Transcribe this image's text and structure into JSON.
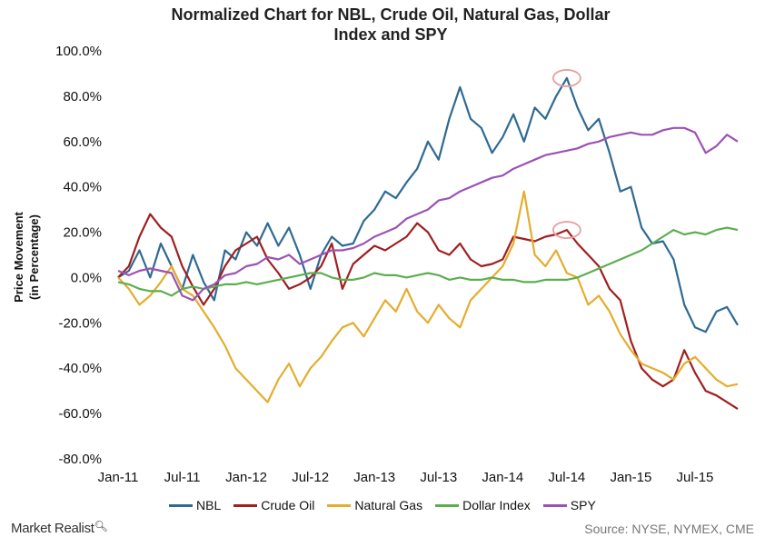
{
  "chart_data": {
    "type": "line",
    "title_line1": "Normalized Chart for NBL, Crude Oil, Natural Gas, Dollar",
    "title_line2": "Index and SPY",
    "ylabel_line1": "Price Movement",
    "ylabel_line2": "(in Percentage)",
    "xlabel": "",
    "ylim": [
      -80,
      100
    ],
    "y_ticks": [
      "100.0%",
      "80.0%",
      "60.0%",
      "40.0%",
      "20.0%",
      "0.0%",
      "-20.0%",
      "-40.0%",
      "-60.0%",
      "-80.0%"
    ],
    "x_ticks": [
      "Jan-11",
      "Jul-11",
      "Jan-12",
      "Jul-12",
      "Jan-13",
      "Jul-13",
      "Jan-14",
      "Jul-14",
      "Jan-15",
      "Jul-15"
    ],
    "x_unit": "months since Jan-11",
    "xlim": [
      0,
      58
    ],
    "grid": false,
    "legend_position": "bottom",
    "highlight_circles": [
      {
        "series": "NBL",
        "x": 42,
        "y": 88
      },
      {
        "series": "Crude Oil",
        "x": 42,
        "y": 21
      }
    ],
    "series": [
      {
        "name": "NBL",
        "color": "#2E6A94",
        "points": [
          [
            0,
            0
          ],
          [
            1,
            3
          ],
          [
            2,
            12
          ],
          [
            3,
            0
          ],
          [
            4,
            15
          ],
          [
            5,
            5
          ],
          [
            6,
            -5
          ],
          [
            7,
            10
          ],
          [
            8,
            -2
          ],
          [
            9,
            -10
          ],
          [
            10,
            12
          ],
          [
            11,
            8
          ],
          [
            12,
            20
          ],
          [
            13,
            14
          ],
          [
            14,
            24
          ],
          [
            15,
            14
          ],
          [
            16,
            22
          ],
          [
            17,
            10
          ],
          [
            18,
            -5
          ],
          [
            19,
            10
          ],
          [
            20,
            18
          ],
          [
            21,
            14
          ],
          [
            22,
            15
          ],
          [
            23,
            25
          ],
          [
            24,
            30
          ],
          [
            25,
            38
          ],
          [
            26,
            35
          ],
          [
            27,
            42
          ],
          [
            28,
            48
          ],
          [
            29,
            60
          ],
          [
            30,
            52
          ],
          [
            31,
            70
          ],
          [
            32,
            84
          ],
          [
            33,
            70
          ],
          [
            34,
            66
          ],
          [
            35,
            55
          ],
          [
            36,
            62
          ],
          [
            37,
            72
          ],
          [
            38,
            60
          ],
          [
            39,
            75
          ],
          [
            40,
            70
          ],
          [
            41,
            80
          ],
          [
            42,
            88
          ],
          [
            43,
            75
          ],
          [
            44,
            65
          ],
          [
            45,
            70
          ],
          [
            46,
            55
          ],
          [
            47,
            38
          ],
          [
            48,
            40
          ],
          [
            49,
            22
          ],
          [
            50,
            15
          ],
          [
            51,
            16
          ],
          [
            52,
            8
          ],
          [
            53,
            -12
          ],
          [
            54,
            -22
          ],
          [
            55,
            -24
          ],
          [
            56,
            -15
          ],
          [
            57,
            -13
          ],
          [
            58,
            -21
          ]
        ]
      },
      {
        "name": "Crude Oil",
        "color": "#A01F1F",
        "points": [
          [
            0,
            0
          ],
          [
            1,
            5
          ],
          [
            2,
            18
          ],
          [
            3,
            28
          ],
          [
            4,
            22
          ],
          [
            5,
            18
          ],
          [
            6,
            5
          ],
          [
            7,
            -4
          ],
          [
            8,
            -12
          ],
          [
            9,
            -5
          ],
          [
            10,
            5
          ],
          [
            11,
            12
          ],
          [
            12,
            15
          ],
          [
            13,
            18
          ],
          [
            14,
            8
          ],
          [
            15,
            2
          ],
          [
            16,
            -5
          ],
          [
            17,
            -3
          ],
          [
            18,
            0
          ],
          [
            19,
            5
          ],
          [
            20,
            15
          ],
          [
            21,
            -5
          ],
          [
            22,
            6
          ],
          [
            23,
            10
          ],
          [
            24,
            14
          ],
          [
            25,
            12
          ],
          [
            26,
            15
          ],
          [
            27,
            18
          ],
          [
            28,
            24
          ],
          [
            29,
            20
          ],
          [
            30,
            12
          ],
          [
            31,
            10
          ],
          [
            32,
            15
          ],
          [
            33,
            8
          ],
          [
            34,
            5
          ],
          [
            35,
            6
          ],
          [
            36,
            8
          ],
          [
            37,
            18
          ],
          [
            38,
            17
          ],
          [
            39,
            16
          ],
          [
            40,
            18
          ],
          [
            41,
            19
          ],
          [
            42,
            21
          ],
          [
            43,
            15
          ],
          [
            44,
            10
          ],
          [
            45,
            5
          ],
          [
            46,
            -5
          ],
          [
            47,
            -10
          ],
          [
            48,
            -28
          ],
          [
            49,
            -40
          ],
          [
            50,
            -45
          ],
          [
            51,
            -48
          ],
          [
            52,
            -45
          ],
          [
            53,
            -32
          ],
          [
            54,
            -42
          ],
          [
            55,
            -50
          ],
          [
            56,
            -52
          ],
          [
            57,
            -55
          ],
          [
            58,
            -58
          ]
        ]
      },
      {
        "name": "Natural Gas",
        "color": "#E4AD2E",
        "points": [
          [
            0,
            0
          ],
          [
            1,
            -5
          ],
          [
            2,
            -12
          ],
          [
            3,
            -8
          ],
          [
            4,
            -2
          ],
          [
            5,
            5
          ],
          [
            6,
            -5
          ],
          [
            7,
            -8
          ],
          [
            8,
            -15
          ],
          [
            9,
            -22
          ],
          [
            10,
            -30
          ],
          [
            11,
            -40
          ],
          [
            12,
            -45
          ],
          [
            13,
            -50
          ],
          [
            14,
            -55
          ],
          [
            15,
            -45
          ],
          [
            16,
            -38
          ],
          [
            17,
            -48
          ],
          [
            18,
            -40
          ],
          [
            19,
            -35
          ],
          [
            20,
            -28
          ],
          [
            21,
            -22
          ],
          [
            22,
            -20
          ],
          [
            23,
            -26
          ],
          [
            24,
            -18
          ],
          [
            25,
            -10
          ],
          [
            26,
            -15
          ],
          [
            27,
            -5
          ],
          [
            28,
            -15
          ],
          [
            29,
            -20
          ],
          [
            30,
            -12
          ],
          [
            31,
            -18
          ],
          [
            32,
            -22
          ],
          [
            33,
            -10
          ],
          [
            34,
            -5
          ],
          [
            35,
            0
          ],
          [
            36,
            5
          ],
          [
            37,
            15
          ],
          [
            38,
            38
          ],
          [
            39,
            10
          ],
          [
            40,
            5
          ],
          [
            41,
            12
          ],
          [
            42,
            2
          ],
          [
            43,
            0
          ],
          [
            44,
            -12
          ],
          [
            45,
            -8
          ],
          [
            46,
            -15
          ],
          [
            47,
            -25
          ],
          [
            48,
            -32
          ],
          [
            49,
            -38
          ],
          [
            50,
            -40
          ],
          [
            51,
            -42
          ],
          [
            52,
            -45
          ],
          [
            53,
            -38
          ],
          [
            54,
            -35
          ],
          [
            55,
            -40
          ],
          [
            56,
            -45
          ],
          [
            57,
            -48
          ],
          [
            58,
            -47
          ]
        ]
      },
      {
        "name": "Dollar Index",
        "color": "#5BAE4E",
        "points": [
          [
            0,
            -2
          ],
          [
            1,
            -3
          ],
          [
            2,
            -5
          ],
          [
            3,
            -6
          ],
          [
            4,
            -6
          ],
          [
            5,
            -8
          ],
          [
            6,
            -5
          ],
          [
            7,
            -4
          ],
          [
            8,
            -5
          ],
          [
            9,
            -4
          ],
          [
            10,
            -3
          ],
          [
            11,
            -3
          ],
          [
            12,
            -2
          ],
          [
            13,
            -3
          ],
          [
            14,
            -2
          ],
          [
            15,
            -1
          ],
          [
            16,
            0
          ],
          [
            17,
            1
          ],
          [
            18,
            2
          ],
          [
            19,
            2
          ],
          [
            20,
            0
          ],
          [
            21,
            -1
          ],
          [
            22,
            -1
          ],
          [
            23,
            0
          ],
          [
            24,
            2
          ],
          [
            25,
            1
          ],
          [
            26,
            1
          ],
          [
            27,
            0
          ],
          [
            28,
            1
          ],
          [
            29,
            2
          ],
          [
            30,
            1
          ],
          [
            31,
            -1
          ],
          [
            32,
            0
          ],
          [
            33,
            -1
          ],
          [
            34,
            -1
          ],
          [
            35,
            0
          ],
          [
            36,
            -1
          ],
          [
            37,
            -1
          ],
          [
            38,
            -2
          ],
          [
            39,
            -2
          ],
          [
            40,
            -1
          ],
          [
            41,
            -1
          ],
          [
            42,
            -1
          ],
          [
            43,
            0
          ],
          [
            44,
            2
          ],
          [
            45,
            4
          ],
          [
            46,
            6
          ],
          [
            47,
            8
          ],
          [
            48,
            10
          ],
          [
            49,
            12
          ],
          [
            50,
            15
          ],
          [
            51,
            18
          ],
          [
            52,
            21
          ],
          [
            53,
            19
          ],
          [
            54,
            20
          ],
          [
            55,
            19
          ],
          [
            56,
            21
          ],
          [
            57,
            22
          ],
          [
            58,
            21
          ]
        ]
      },
      {
        "name": "SPY",
        "color": "#9C52B5",
        "points": [
          [
            0,
            3
          ],
          [
            1,
            1
          ],
          [
            2,
            3
          ],
          [
            3,
            4
          ],
          [
            4,
            3
          ],
          [
            5,
            2
          ],
          [
            6,
            -8
          ],
          [
            7,
            -10
          ],
          [
            8,
            -5
          ],
          [
            9,
            -3
          ],
          [
            10,
            1
          ],
          [
            11,
            2
          ],
          [
            12,
            5
          ],
          [
            13,
            6
          ],
          [
            14,
            9
          ],
          [
            15,
            8
          ],
          [
            16,
            10
          ],
          [
            17,
            6
          ],
          [
            18,
            8
          ],
          [
            19,
            10
          ],
          [
            20,
            12
          ],
          [
            21,
            12
          ],
          [
            22,
            13
          ],
          [
            23,
            15
          ],
          [
            24,
            18
          ],
          [
            25,
            20
          ],
          [
            26,
            22
          ],
          [
            27,
            26
          ],
          [
            28,
            28
          ],
          [
            29,
            30
          ],
          [
            30,
            34
          ],
          [
            31,
            35
          ],
          [
            32,
            38
          ],
          [
            33,
            40
          ],
          [
            34,
            42
          ],
          [
            35,
            44
          ],
          [
            36,
            45
          ],
          [
            37,
            48
          ],
          [
            38,
            50
          ],
          [
            39,
            52
          ],
          [
            40,
            54
          ],
          [
            41,
            55
          ],
          [
            42,
            56
          ],
          [
            43,
            57
          ],
          [
            44,
            59
          ],
          [
            45,
            60
          ],
          [
            46,
            62
          ],
          [
            47,
            63
          ],
          [
            48,
            64
          ],
          [
            49,
            63
          ],
          [
            50,
            63
          ],
          [
            51,
            65
          ],
          [
            52,
            66
          ],
          [
            53,
            66
          ],
          [
            54,
            64
          ],
          [
            55,
            55
          ],
          [
            56,
            58
          ],
          [
            57,
            63
          ],
          [
            58,
            60
          ]
        ]
      }
    ]
  },
  "footer": {
    "brand": "Market Realist",
    "source": "Source: NYSE, NYMEX, CME"
  }
}
